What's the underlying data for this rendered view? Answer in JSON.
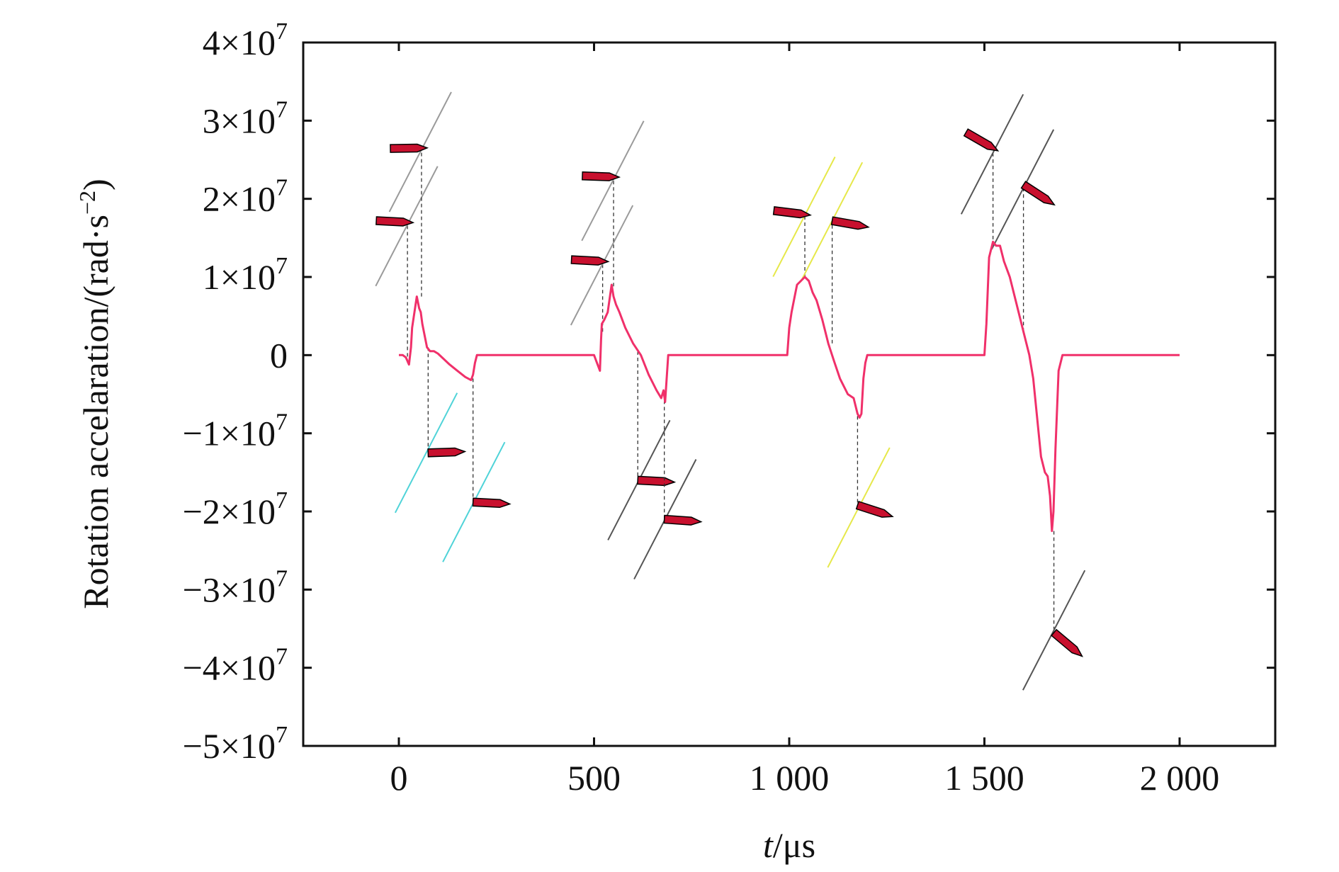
{
  "chart_data": {
    "type": "line",
    "xlabel_var": "t",
    "xlabel_unit": "/μs",
    "ylabel": "Rotation accelaration/(rad·s",
    "ylabel_exp": "−2",
    "ylabel_close": ")",
    "xlim": [
      -245,
      2245
    ],
    "ylim": [
      -50000000,
      40000000
    ],
    "xticks": [
      0,
      500,
      1000,
      1500,
      2000
    ],
    "xtick_labels": [
      "0",
      "500",
      "1 000",
      "1 500",
      "2 000"
    ],
    "yticks": [
      40000000,
      30000000,
      20000000,
      10000000,
      0,
      -10000000,
      -20000000,
      -30000000,
      -40000000,
      -50000000
    ],
    "ytick_labels": [
      {
        "mantissa": "4×10",
        "exp": "7"
      },
      {
        "mantissa": "3×10",
        "exp": "7"
      },
      {
        "mantissa": "2×10",
        "exp": "7"
      },
      {
        "mantissa": "1×10",
        "exp": "7"
      },
      {
        "mantissa": "0",
        "exp": ""
      },
      {
        "mantissa": "−1×10",
        "exp": "7"
      },
      {
        "mantissa": "−2×10",
        "exp": "7"
      },
      {
        "mantissa": "−3×10",
        "exp": "7"
      },
      {
        "mantissa": "−4×10",
        "exp": "7"
      },
      {
        "mantissa": "−5×10",
        "exp": "7"
      }
    ],
    "grid": false,
    "legend": "none",
    "series": [
      {
        "color": "#f0306a",
        "x": [
          0,
          10,
          18,
          26,
          31,
          34,
          40,
          46,
          52,
          56,
          60,
          66,
          72,
          80,
          90,
          100,
          115,
          130,
          150,
          170,
          185,
          190,
          195,
          200,
          400,
          500,
          515,
          518,
          520,
          526,
          535,
          545,
          550,
          556,
          565,
          580,
          600,
          620,
          640,
          660,
          672,
          678,
          682,
          686,
          690,
          900,
          995,
          1000,
          1006,
          1012,
          1020,
          1030,
          1040,
          1050,
          1060,
          1070,
          1085,
          1100,
          1115,
          1130,
          1150,
          1165,
          1175,
          1180,
          1185,
          1190,
          1195,
          1200,
          1400,
          1495,
          1500,
          1505,
          1512,
          1522,
          1530,
          1540,
          1550,
          1565,
          1580,
          1600,
          1615,
          1625,
          1635,
          1645,
          1655,
          1662,
          1668,
          1673,
          1677,
          1682,
          1690,
          1700,
          2000
        ],
        "y": [
          0,
          0,
          -300000,
          -1200000,
          1000000,
          3500000,
          5500000,
          7500000,
          6000000,
          5500000,
          4000000,
          2500000,
          1000000,
          500000,
          500000,
          200000,
          -500000,
          -1200000,
          -2000000,
          -2800000,
          -3200000,
          -2500000,
          -1000000,
          0,
          0,
          0,
          -2000000,
          2000000,
          4000000,
          4500000,
          5500000,
          9000000,
          7500000,
          6500000,
          5500000,
          3500000,
          1500000,
          0,
          -2500000,
          -4500000,
          -5500000,
          -4500000,
          -6000000,
          -3000000,
          0,
          0,
          0,
          3500000,
          5500000,
          7000000,
          9000000,
          9500000,
          10000000,
          9500000,
          8000000,
          7000000,
          4500000,
          1500000,
          -800000,
          -3000000,
          -5000000,
          -5500000,
          -7500000,
          -8000000,
          -7500000,
          -3000000,
          -1000000,
          0,
          0,
          0,
          0,
          4000000,
          12500000,
          14500000,
          14000000,
          14000000,
          12000000,
          10000000,
          7000000,
          3000000,
          0,
          -3000000,
          -8000000,
          -13000000,
          -15000000,
          -15500000,
          -18000000,
          -22500000,
          -20000000,
          -12000000,
          -2000000,
          0,
          0
        ]
      }
    ],
    "annotations": [
      {
        "t": 22,
        "value": -1000000,
        "label_y": 17000000,
        "side": "left",
        "angle": 3,
        "plate": "#9a9a9a",
        "plate_t": 20,
        "plate_y": 16500000
      },
      {
        "t": 58,
        "value": 7500000,
        "label_y": 26500000,
        "side": "left",
        "angle": -1,
        "plate": "#9a9a9a",
        "plate_t": 55,
        "plate_y": 26000000
      },
      {
        "t": 75,
        "value": 1000000,
        "label_y": -12500000,
        "side": "right",
        "angle": -2,
        "plate": "#4fd3d8",
        "plate_t": 70,
        "plate_y": -12500000
      },
      {
        "t": 190,
        "value": -3000000,
        "label_y": -18800000,
        "side": "right",
        "angle": 3,
        "plate": "#4fd3d8",
        "plate_t": 192,
        "plate_y": -18800000
      },
      {
        "t": 522,
        "value": 3000000,
        "label_y": 12000000,
        "side": "left",
        "angle": 3,
        "plate": "#9a9a9a",
        "plate_t": 520,
        "plate_y": 11500000
      },
      {
        "t": 550,
        "value": 8800000,
        "label_y": 22800000,
        "side": "left",
        "angle": 2,
        "plate": "#9a9a9a",
        "plate_t": 548,
        "plate_y": 22300000
      },
      {
        "t": 612,
        "value": 500000,
        "label_y": -16000000,
        "side": "right",
        "angle": 3,
        "plate": "#555555",
        "plate_t": 615,
        "plate_y": -16000000
      },
      {
        "t": 680,
        "value": -5800000,
        "label_y": -21000000,
        "side": "right",
        "angle": 4,
        "plate": "#555555",
        "plate_t": 682,
        "plate_y": -21000000
      },
      {
        "t": 1040,
        "value": 10000000,
        "label_y": 18000000,
        "side": "left",
        "angle": 7,
        "plate": "#e6e84a",
        "plate_t": 1038,
        "plate_y": 17700000
      },
      {
        "t": 1110,
        "value": 1500000,
        "label_y": 17200000,
        "side": "right",
        "angle": 10,
        "plate": "#e6e84a",
        "plate_t": 1108,
        "plate_y": 17000000
      },
      {
        "t": 1175,
        "value": -7800000,
        "label_y": -19200000,
        "side": "right",
        "angle": 18,
        "plate": "#e6e84a",
        "plate_t": 1178,
        "plate_y": -19500000
      },
      {
        "t": 1522,
        "value": 14000000,
        "label_y": 26500000,
        "side": "left",
        "angle": 30,
        "plate": "#555555",
        "plate_t": 1520,
        "plate_y": 25700000
      },
      {
        "t": 1600,
        "value": 3000000,
        "label_y": 21800000,
        "side": "right",
        "angle": 33,
        "plate": "#555555",
        "plate_t": 1598,
        "plate_y": 21200000
      },
      {
        "t": 1678,
        "value": -22500000,
        "label_y": -35500000,
        "side": "right",
        "angle": 40,
        "plate": "#555555",
        "plate_t": 1678,
        "plate_y": -35200000
      }
    ]
  }
}
